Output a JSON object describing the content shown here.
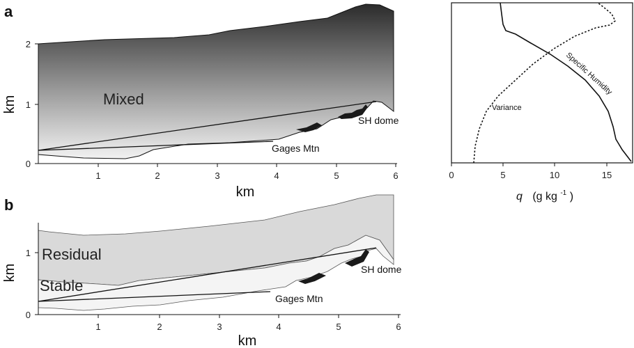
{
  "panel_a": {
    "letter": "a",
    "y_label": "km",
    "x_label": "km",
    "y_ticks": [
      "0",
      "1",
      "2"
    ],
    "x_ticks": [
      "1",
      "2",
      "3",
      "4",
      "5",
      "6"
    ],
    "region_mixed": "Mixed",
    "label_sh_dome": "SH dome",
    "label_gages": "Gages Mtn"
  },
  "panel_b": {
    "letter": "b",
    "y_label": "km",
    "x_label": "km",
    "y_ticks": [
      "0",
      "1"
    ],
    "x_ticks": [
      "1",
      "2",
      "3",
      "4",
      "5",
      "6"
    ],
    "region_residual": "Residual",
    "region_stable": "Stable",
    "label_sh_dome": "SH dome",
    "label_gages": "Gages Mtn"
  },
  "profile": {
    "x_ticks": [
      "0",
      "5",
      "10",
      "15"
    ],
    "x_symbol": "q",
    "x_units": "(g kg",
    "x_units_exp": "-1",
    "x_units_close": ")",
    "curve_specific": "Specific Humidity",
    "curve_variance": "Variance"
  },
  "colors": {
    "mixed_top": "#2b2b2b",
    "mixed_bottom": "#f2f2f2",
    "residual": "#d9d9d9",
    "stable": "#f4f4f4",
    "terrain_dark": "#1a1a1a"
  }
}
